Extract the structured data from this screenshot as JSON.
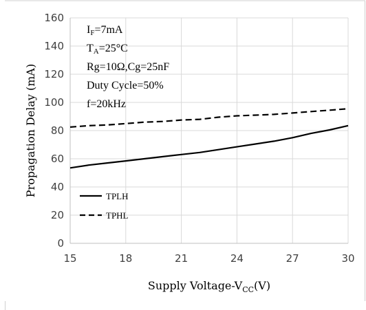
{
  "chart_data": {
    "type": "line",
    "xlabel_main": "Supply Voltage-V",
    "xlabel_sub": "CC",
    "xlabel_unit": "(V)",
    "ylabel": "Propagation Delay (mA)",
    "xlim": [
      15,
      30
    ],
    "ylim": [
      0,
      160
    ],
    "xticks": [
      15,
      18,
      21,
      24,
      27,
      30
    ],
    "yticks": [
      0,
      20,
      40,
      60,
      80,
      100,
      120,
      140,
      160
    ],
    "grid": true,
    "legend_position": "bottom-left",
    "conditions": [
      {
        "main": "I",
        "sub": "F",
        "rest": "=7mA"
      },
      {
        "main": "T",
        "sub": "A",
        "rest": "=25°C"
      },
      {
        "main": "Rg=10Ω,Cg=25nF",
        "sub": "",
        "rest": ""
      },
      {
        "main": "Duty Cycle=50%",
        "sub": "",
        "rest": ""
      },
      {
        "main": "f=20kHz",
        "sub": "",
        "rest": ""
      }
    ],
    "series": [
      {
        "name": "TPLH",
        "style": "solid",
        "x": [
          15,
          16,
          17,
          18,
          19,
          20,
          21,
          22,
          23,
          24,
          25,
          26,
          27,
          28,
          29,
          30
        ],
        "y": [
          53.5,
          55.5,
          57,
          58.5,
          60,
          61.5,
          63,
          64.5,
          66.5,
          68.5,
          70.5,
          72.5,
          75,
          78,
          80.5,
          83.5
        ]
      },
      {
        "name": "TPHL",
        "style": "dashed",
        "x": [
          15,
          16,
          17,
          18,
          19,
          20,
          21,
          22,
          23,
          24,
          25,
          26,
          27,
          28,
          29,
          30
        ],
        "y": [
          82.5,
          83.5,
          84,
          85,
          86,
          86.5,
          87.5,
          88,
          89.5,
          90.5,
          91,
          91.5,
          92.5,
          93.5,
          94.5,
          95.5
        ]
      }
    ]
  }
}
